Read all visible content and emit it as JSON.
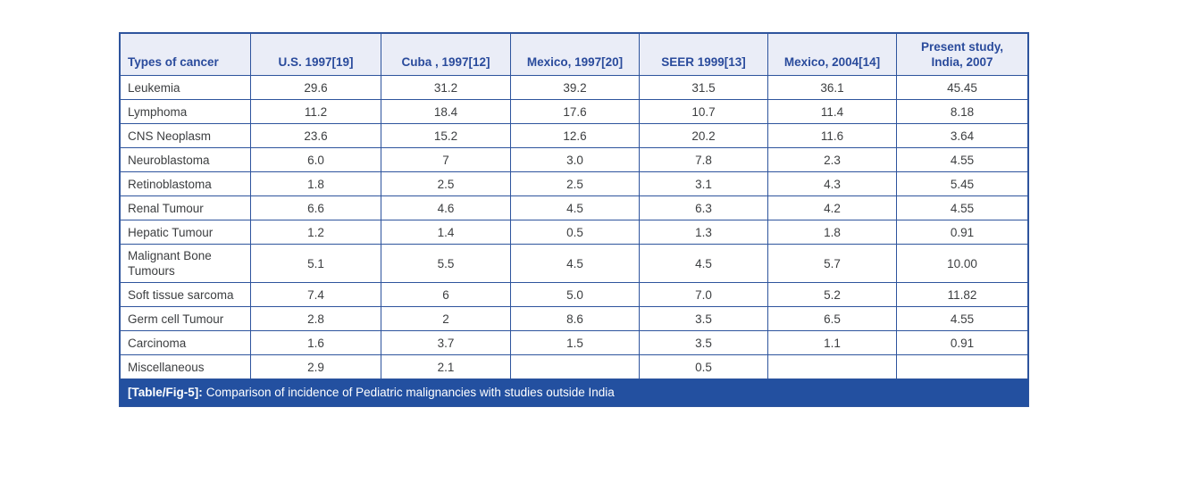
{
  "table": {
    "columns": [
      "Types of cancer",
      "U.S. 1997[19]",
      "Cuba , 1997[12]",
      "Mexico, 1997[20]",
      "SEER 1999[13]",
      "Mexico, 2004[14]",
      "Present study, India, 2007"
    ],
    "rows": [
      {
        "label": "Leukemia",
        "values": [
          "29.6",
          "31.2",
          "39.2",
          "31.5",
          "36.1",
          "45.45"
        ]
      },
      {
        "label": "Lymphoma",
        "values": [
          "11.2",
          "18.4",
          "17.6",
          "10.7",
          "11.4",
          "8.18"
        ]
      },
      {
        "label": "CNS Neoplasm",
        "values": [
          "23.6",
          "15.2",
          "12.6",
          "20.2",
          "11.6",
          "3.64"
        ]
      },
      {
        "label": "Neuroblastoma",
        "values": [
          "6.0",
          "7",
          "3.0",
          "7.8",
          "2.3",
          "4.55"
        ]
      },
      {
        "label": "Retinoblastoma",
        "values": [
          "1.8",
          "2.5",
          "2.5",
          "3.1",
          "4.3",
          "5.45"
        ]
      },
      {
        "label": "Renal Tumour",
        "values": [
          "6.6",
          "4.6",
          "4.5",
          "6.3",
          "4.2",
          "4.55"
        ]
      },
      {
        "label": "Hepatic Tumour",
        "values": [
          "1.2",
          "1.4",
          "0.5",
          "1.3",
          "1.8",
          "0.91"
        ]
      },
      {
        "label": "Malignant Bone Tumours",
        "values": [
          "5.1",
          "5.5",
          "4.5",
          "4.5",
          "5.7",
          "10.00"
        ]
      },
      {
        "label": "Soft tissue sarcoma",
        "values": [
          "7.4",
          "6",
          "5.0",
          "7.0",
          "5.2",
          "11.82"
        ]
      },
      {
        "label": "Germ cell Tumour",
        "values": [
          "2.8",
          "2",
          "8.6",
          "3.5",
          "6.5",
          "4.55"
        ]
      },
      {
        "label": "Carcinoma",
        "values": [
          "1.6",
          "3.7",
          "1.5",
          "3.5",
          "1.1",
          "0.91"
        ]
      },
      {
        "label": "Miscellaneous",
        "values": [
          "2.9",
          "2.1",
          "",
          "0.5",
          "",
          ""
        ]
      }
    ],
    "caption": {
      "label": "[Table/Fig-5]:",
      "text": "Comparison of incidence of Pediatric malignancies with studies outside India"
    }
  },
  "colors": {
    "border": "#2e549d",
    "header_bg": "#eaedf7",
    "header_text": "#2a4b9c",
    "body_text": "#3c3e40",
    "caption_bg": "#2350a0",
    "caption_text": "#ffffff"
  }
}
